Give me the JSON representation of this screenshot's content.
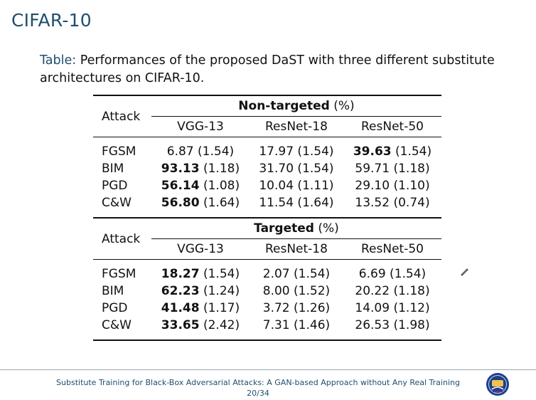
{
  "slide": {
    "title": "CIFAR-10",
    "caption_label": "Table:",
    "caption_text": " Performances of the proposed DaST with three different substitute architectures on CIFAR-10."
  },
  "table": {
    "attack_header": "Attack",
    "sections": [
      {
        "title_bold": "Non-targeted",
        "title_unit": " (%)",
        "columns": [
          "VGG-13",
          "ResNet-18",
          "ResNet-50"
        ],
        "rows": [
          {
            "attack": "FGSM",
            "cells": [
              {
                "v": "6.87",
                "sd": " (1.54)",
                "b": false
              },
              {
                "v": "17.97",
                "sd": " (1.54)",
                "b": false
              },
              {
                "v": "39.63",
                "sd": " (1.54)",
                "b": true
              }
            ]
          },
          {
            "attack": "BIM",
            "cells": [
              {
                "v": "93.13",
                "sd": " (1.18)",
                "b": true
              },
              {
                "v": "31.70",
                "sd": " (1.54)",
                "b": false
              },
              {
                "v": "59.71",
                "sd": " (1.18)",
                "b": false
              }
            ]
          },
          {
            "attack": "PGD",
            "cells": [
              {
                "v": "56.14",
                "sd": " (1.08)",
                "b": true
              },
              {
                "v": "10.04",
                "sd": " (1.11)",
                "b": false
              },
              {
                "v": "29.10",
                "sd": " (1.10)",
                "b": false
              }
            ]
          },
          {
            "attack": "C&W",
            "cells": [
              {
                "v": "56.80",
                "sd": " (1.64)",
                "b": true
              },
              {
                "v": "11.54",
                "sd": " (1.64)",
                "b": false
              },
              {
                "v": "13.52",
                "sd": " (0.74)",
                "b": false
              }
            ]
          }
        ]
      },
      {
        "title_bold": "Targeted",
        "title_unit": " (%)",
        "columns": [
          "VGG-13",
          "ResNet-18",
          "ResNet-50"
        ],
        "rows": [
          {
            "attack": "FGSM",
            "cells": [
              {
                "v": "18.27",
                "sd": " (1.54)",
                "b": true
              },
              {
                "v": "2.07",
                "sd": " (1.54)",
                "b": false
              },
              {
                "v": "6.69",
                "sd": " (1.54)",
                "b": false
              }
            ]
          },
          {
            "attack": "BIM",
            "cells": [
              {
                "v": "62.23",
                "sd": " (1.24)",
                "b": true
              },
              {
                "v": "8.00",
                "sd": " (1.52)",
                "b": false
              },
              {
                "v": "20.22",
                "sd": " (1.18)",
                "b": false
              }
            ]
          },
          {
            "attack": "PGD",
            "cells": [
              {
                "v": "41.48",
                "sd": " (1.17)",
                "b": true
              },
              {
                "v": "3.72",
                "sd": " (1.26)",
                "b": false
              },
              {
                "v": "14.09",
                "sd": " (1.12)",
                "b": false
              }
            ]
          },
          {
            "attack": "C&W",
            "cells": [
              {
                "v": "33.65",
                "sd": " (2.42)",
                "b": true
              },
              {
                "v": "7.31",
                "sd": " (1.46)",
                "b": false
              },
              {
                "v": "26.53",
                "sd": " (1.98)",
                "b": false
              }
            ]
          }
        ]
      }
    ]
  },
  "footer": {
    "text": "Substitute Training for Black-Box Adversarial Attacks: A GAN-based Approach without Any Real Training",
    "page": "20/34",
    "logo_icon": "university-seal-icon"
  },
  "colors": {
    "title": "#1f4e6e",
    "footer_rule": "#9aa7b0"
  },
  "cursor_icon": "pen-cursor-icon"
}
